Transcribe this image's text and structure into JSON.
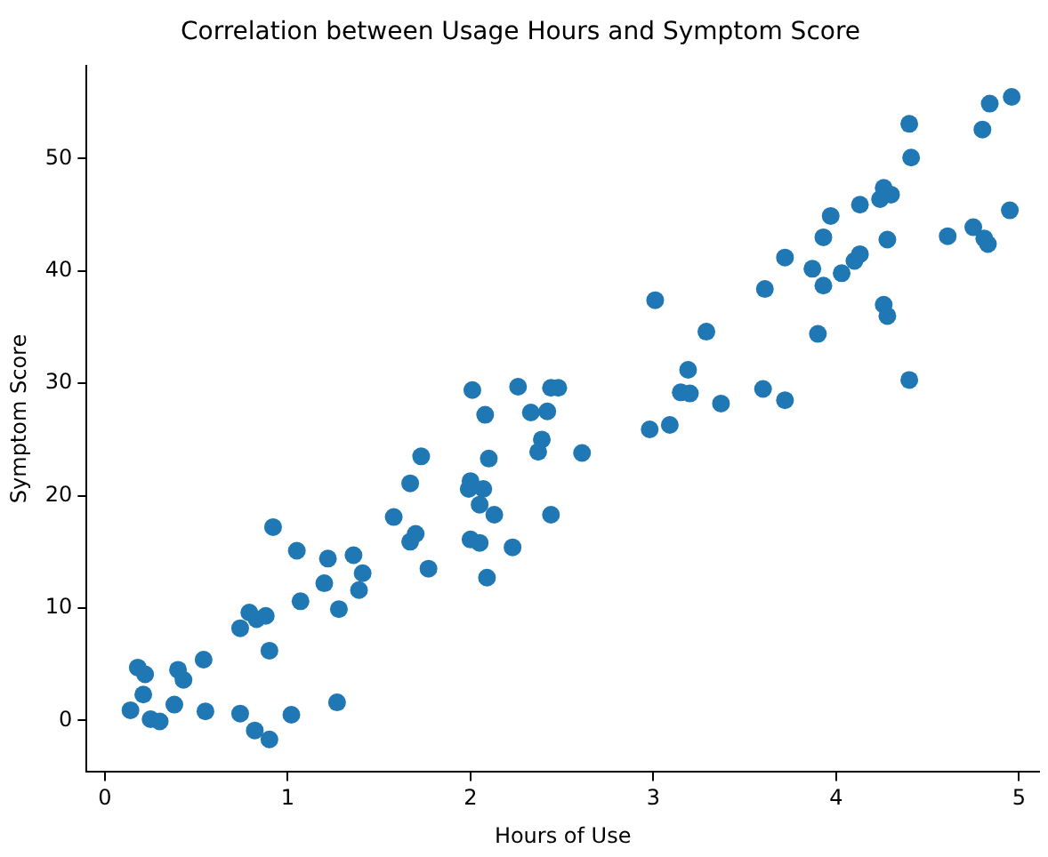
{
  "chart_data": {
    "type": "scatter",
    "title": "Correlation between Usage Hours and Symptom Score",
    "xlabel": "Hours of Use",
    "ylabel": "Symptom Score",
    "x": [
      0.14,
      0.18,
      0.22,
      0.21,
      0.25,
      0.3,
      0.38,
      0.4,
      0.43,
      0.54,
      0.55,
      0.74,
      0.79,
      0.83,
      0.88,
      0.9,
      0.74,
      0.82,
      0.9,
      1.02,
      1.27,
      0.92,
      1.05,
      1.07,
      1.22,
      1.2,
      1.28,
      1.36,
      1.41,
      1.39,
      1.58,
      1.67,
      1.73,
      1.7,
      1.67,
      1.77,
      2.01,
      2.08,
      2.0,
      1.99,
      2.07,
      2.05,
      2.13,
      2.1,
      2.0,
      2.05,
      2.09,
      2.23,
      2.26,
      2.33,
      2.42,
      2.44,
      2.48,
      2.39,
      2.37,
      2.44,
      2.61,
      2.98,
      3.01,
      3.09,
      3.29,
      3.15,
      3.2,
      3.19,
      3.37,
      4.4,
      3.6,
      3.72,
      3.9,
      3.61,
      3.72,
      3.87,
      3.93,
      3.93,
      3.97,
      4.03,
      4.1,
      4.13,
      4.13,
      4.24,
      4.26,
      4.3,
      4.28,
      4.26,
      4.28,
      4.4,
      4.41,
      4.61,
      4.75,
      4.81,
      4.83,
      4.8,
      4.84,
      4.96,
      4.95
    ],
    "values": [
      0.9,
      4.7,
      4.1,
      2.3,
      0.1,
      -0.1,
      1.4,
      4.5,
      3.6,
      5.4,
      0.8,
      8.2,
      9.6,
      9.0,
      9.3,
      6.2,
      0.6,
      -0.9,
      -1.7,
      0.5,
      1.6,
      17.2,
      15.1,
      10.6,
      14.4,
      12.2,
      9.9,
      14.7,
      13.1,
      11.6,
      18.1,
      21.1,
      23.5,
      16.6,
      15.9,
      13.5,
      29.4,
      27.2,
      21.3,
      20.6,
      20.6,
      19.2,
      18.3,
      23.3,
      16.1,
      15.8,
      12.7,
      15.4,
      29.7,
      27.4,
      27.5,
      29.6,
      29.6,
      25.0,
      23.9,
      18.3,
      23.8,
      25.9,
      37.4,
      26.3,
      34.6,
      29.2,
      29.1,
      31.2,
      28.2,
      30.3,
      29.5,
      28.5,
      34.4,
      38.4,
      41.2,
      40.2,
      38.7,
      43.0,
      44.9,
      39.8,
      40.9,
      41.5,
      45.9,
      46.4,
      47.4,
      46.8,
      42.8,
      37.0,
      36.0,
      53.1,
      50.1,
      43.1,
      43.9,
      42.9,
      42.4,
      52.6,
      54.9,
      55.5,
      45.4
    ],
    "color": "#1f77b4",
    "marker": "circle",
    "xlim": [
      -0.1,
      5.11
    ],
    "ylim": [
      -4.6,
      58.3
    ],
    "xticks": [
      0,
      1,
      2,
      3,
      4,
      5
    ],
    "yticks": [
      0,
      10,
      20,
      30,
      40,
      50
    ],
    "grid": false,
    "legend": false
  }
}
